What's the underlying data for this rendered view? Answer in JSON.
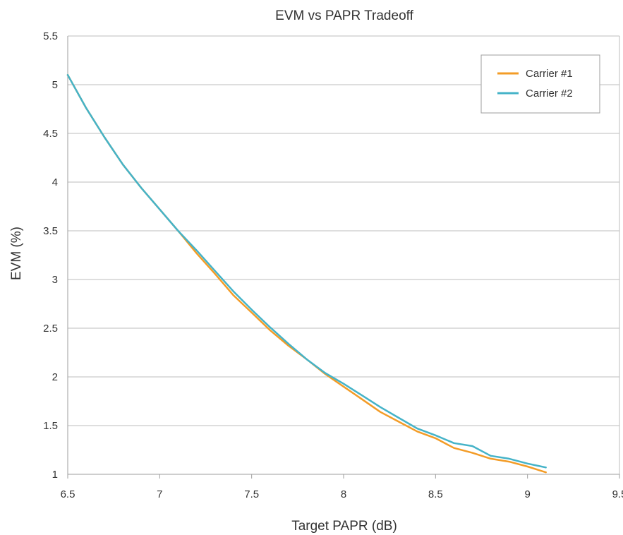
{
  "chart_data": {
    "type": "line",
    "title": "EVM vs PAPR Tradeoff",
    "xlabel": "Target PAPR (dB)",
    "ylabel": "EVM (%)",
    "xlim": [
      6.5,
      9.5
    ],
    "ylim": [
      1,
      5.5
    ],
    "x_ticks": [
      6.5,
      7,
      7.5,
      8,
      8.5,
      9,
      9.5
    ],
    "y_ticks": [
      1,
      1.5,
      2,
      2.5,
      3,
      3.5,
      4,
      4.5,
      5,
      5.5
    ],
    "x_tick_labels": [
      "6.5",
      "7",
      "7.5",
      "8",
      "8.5",
      "9",
      "9.5"
    ],
    "y_tick_labels": [
      "1",
      "1.5",
      "2",
      "2.5",
      "3",
      "3.5",
      "4",
      "4.5",
      "5",
      "5.5"
    ],
    "grid": "horizontal",
    "legend_position": "top-right",
    "series": [
      {
        "name": "Carrier #1",
        "color": "#f39c27",
        "x": [
          6.5,
          6.6,
          6.7,
          6.8,
          6.9,
          7.0,
          7.1,
          7.2,
          7.3,
          7.4,
          7.5,
          7.6,
          7.7,
          7.8,
          7.9,
          8.0,
          8.1,
          8.2,
          8.3,
          8.4,
          8.5,
          8.6,
          8.7,
          8.8,
          8.9,
          9.0,
          9.1
        ],
        "values": [
          5.1,
          4.76,
          4.46,
          4.18,
          3.94,
          3.72,
          3.5,
          3.27,
          3.06,
          2.84,
          2.66,
          2.48,
          2.32,
          2.18,
          2.03,
          1.9,
          1.77,
          1.64,
          1.54,
          1.44,
          1.37,
          1.27,
          1.22,
          1.16,
          1.13,
          1.08,
          1.02
        ]
      },
      {
        "name": "Carrier #2",
        "color": "#45b3c8",
        "x": [
          6.5,
          6.6,
          6.7,
          6.8,
          6.9,
          7.0,
          7.1,
          7.2,
          7.3,
          7.4,
          7.5,
          7.6,
          7.7,
          7.8,
          7.9,
          8.0,
          8.1,
          8.2,
          8.3,
          8.4,
          8.5,
          8.6,
          8.7,
          8.8,
          8.9,
          9.0,
          9.1
        ],
        "values": [
          5.1,
          4.76,
          4.46,
          4.18,
          3.94,
          3.72,
          3.5,
          3.3,
          3.09,
          2.88,
          2.69,
          2.51,
          2.34,
          2.18,
          2.04,
          1.93,
          1.81,
          1.69,
          1.58,
          1.47,
          1.4,
          1.32,
          1.29,
          1.19,
          1.16,
          1.11,
          1.07
        ]
      }
    ]
  }
}
